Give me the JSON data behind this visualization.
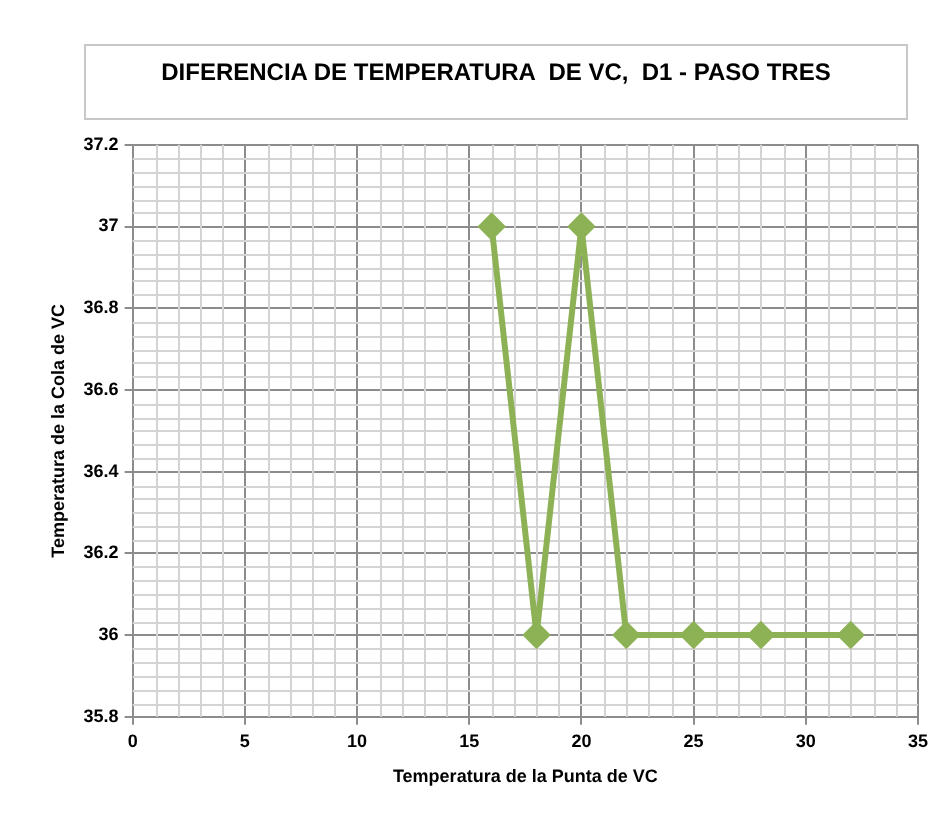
{
  "chart_data": {
    "type": "line",
    "title": "DIFERENCIA DE TEMPERATURA  DE VC,  D1 - PASO TRES",
    "xlabel": "Temperatura de la Punta de VC",
    "ylabel": "Temperatura de la Cola de VC",
    "x": [
      16,
      18,
      20,
      22,
      25,
      28,
      32
    ],
    "series": [
      {
        "color": "#8db255",
        "values": [
          37,
          36,
          37,
          36,
          36,
          36,
          36
        ]
      }
    ],
    "xlim": [
      0,
      35
    ],
    "xticks": [
      0,
      5,
      10,
      15,
      20,
      25,
      30,
      35
    ],
    "ylim": [
      35.8,
      37.2
    ],
    "yticks": [
      35.8,
      36,
      36.2,
      36.4,
      36.6,
      36.8,
      37,
      37.2
    ],
    "grid": true,
    "legend": false,
    "marker": "diamond",
    "line_style": "solid"
  }
}
